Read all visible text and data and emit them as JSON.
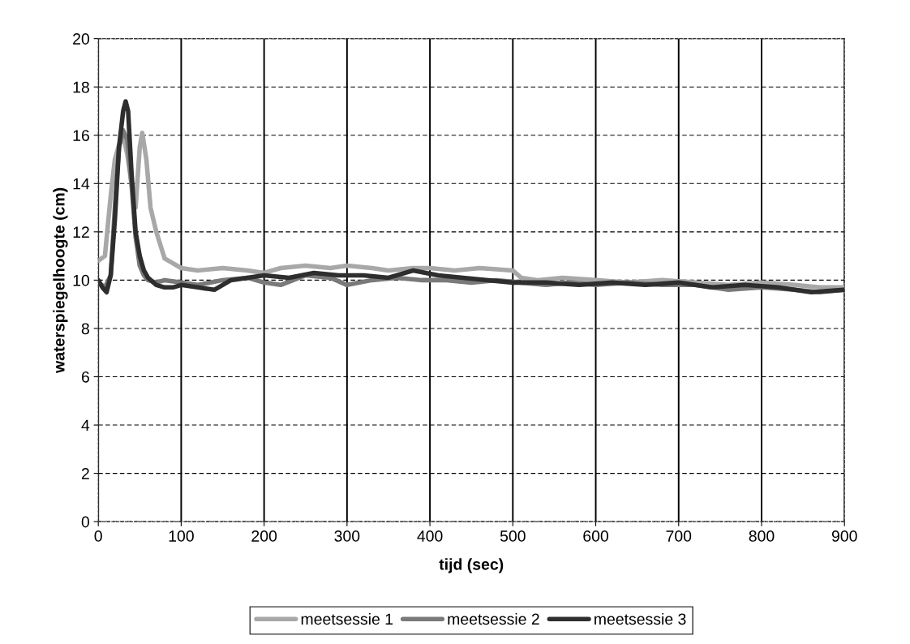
{
  "chart_data": {
    "type": "line",
    "xlabel": "tijd (sec)",
    "ylabel": "waterspiegelhoogte (cm)",
    "xlim": [
      0,
      900
    ],
    "xticks": [
      0,
      100,
      200,
      300,
      400,
      500,
      600,
      700,
      800,
      900
    ],
    "ylim": [
      0,
      20
    ],
    "yticks": [
      0,
      2,
      4,
      6,
      8,
      10,
      12,
      14,
      16,
      18,
      20
    ],
    "grid": true,
    "legend": "bottom",
    "marker": "none",
    "line_style": "solid",
    "series": [
      {
        "name": "meetsessie 1",
        "color": "#a8a8a8",
        "x": [
          0,
          8,
          15,
          20,
          25,
          30,
          35,
          40,
          45,
          50,
          53,
          58,
          63,
          70,
          80,
          90,
          100,
          120,
          150,
          180,
          200,
          220,
          250,
          280,
          300,
          330,
          350,
          380,
          400,
          430,
          460,
          500,
          510,
          530,
          560,
          600,
          640,
          680,
          720,
          760,
          800,
          840,
          870,
          900
        ],
        "values": [
          10.8,
          11.0,
          13.5,
          15.0,
          15.6,
          16.0,
          15.2,
          14.0,
          13.0,
          15.5,
          16.1,
          15.0,
          13.0,
          12.0,
          10.9,
          10.7,
          10.5,
          10.4,
          10.5,
          10.4,
          10.3,
          10.5,
          10.6,
          10.5,
          10.6,
          10.5,
          10.4,
          10.5,
          10.5,
          10.4,
          10.5,
          10.4,
          10.1,
          10.0,
          10.1,
          10.0,
          9.9,
          10.0,
          9.9,
          9.8,
          9.9,
          9.8,
          9.7,
          9.7
        ]
      },
      {
        "name": "meetsessie 2",
        "color": "#7a7a7a",
        "x": [
          0,
          8,
          15,
          20,
          25,
          30,
          35,
          40,
          45,
          50,
          55,
          60,
          70,
          80,
          100,
          120,
          150,
          180,
          200,
          220,
          250,
          280,
          300,
          330,
          360,
          390,
          420,
          450,
          480,
          510,
          540,
          570,
          600,
          640,
          680,
          720,
          760,
          800,
          840,
          870,
          900
        ],
        "values": [
          9.9,
          9.7,
          10.2,
          13.0,
          15.5,
          16.2,
          15.8,
          14.0,
          11.8,
          10.6,
          10.2,
          10.0,
          9.9,
          10.0,
          9.9,
          9.8,
          10.0,
          10.1,
          9.9,
          9.8,
          10.2,
          10.1,
          9.8,
          10.0,
          10.1,
          10.0,
          10.0,
          9.9,
          10.0,
          9.9,
          9.8,
          9.9,
          9.8,
          9.9,
          9.8,
          9.8,
          9.6,
          9.7,
          9.6,
          9.5,
          9.6
        ]
      },
      {
        "name": "meetsessie 3",
        "color": "#2e2e2e",
        "x": [
          0,
          5,
          10,
          15,
          20,
          25,
          30,
          33,
          36,
          40,
          45,
          50,
          55,
          60,
          70,
          80,
          90,
          100,
          120,
          140,
          160,
          180,
          200,
          230,
          260,
          290,
          320,
          350,
          380,
          410,
          440,
          470,
          500,
          540,
          580,
          620,
          660,
          700,
          740,
          780,
          820,
          860,
          900
        ],
        "values": [
          10.0,
          9.7,
          9.5,
          10.2,
          12.5,
          15.5,
          17.0,
          17.4,
          17.0,
          14.5,
          12.0,
          11.0,
          10.4,
          10.1,
          9.8,
          9.7,
          9.7,
          9.8,
          9.7,
          9.6,
          10.0,
          10.1,
          10.2,
          10.1,
          10.3,
          10.2,
          10.2,
          10.1,
          10.4,
          10.2,
          10.1,
          10.0,
          9.9,
          9.9,
          9.8,
          9.9,
          9.8,
          9.9,
          9.7,
          9.8,
          9.7,
          9.5,
          9.6
        ]
      }
    ]
  }
}
